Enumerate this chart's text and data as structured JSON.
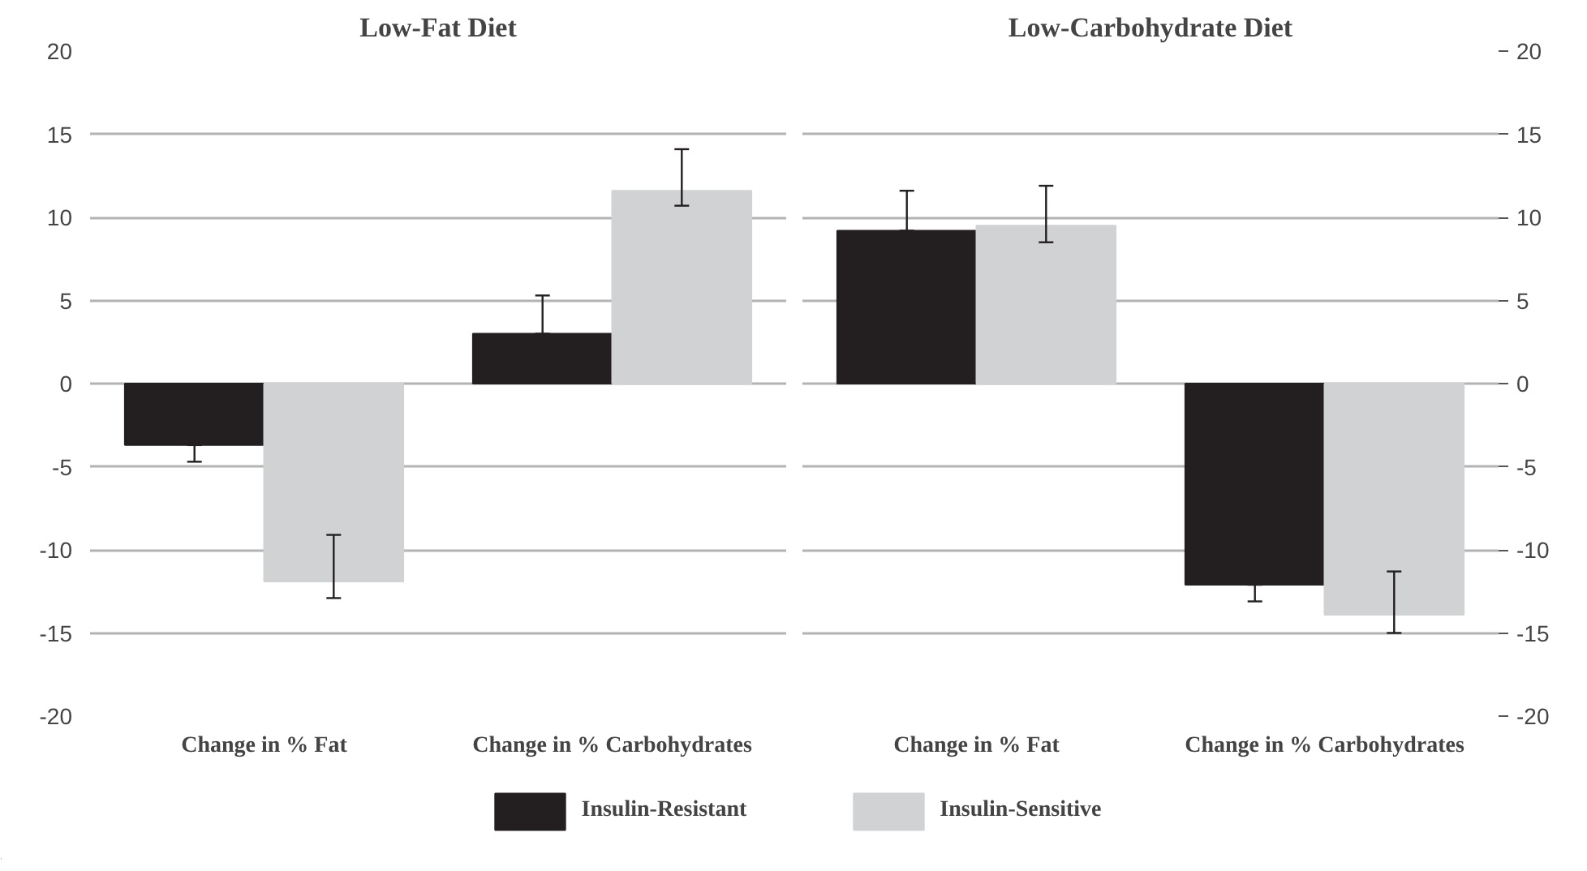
{
  "chart_data": [
    {
      "type": "bar",
      "title": "Low-Fat Diet",
      "categories": [
        "Change in % Fat",
        "Change in % Carbohydrates"
      ],
      "ylim": [
        -20,
        20
      ],
      "yticks": [
        -20,
        -15,
        -10,
        -5,
        0,
        5,
        10,
        15,
        20
      ],
      "grid": "y",
      "legend": "bottom",
      "series": [
        {
          "name": "Insulin-Resistant",
          "color": "#231f20",
          "values": [
            -3.7,
            3.0
          ],
          "errors": [
            [
              -4.7,
              -3.7
            ],
            [
              3.0,
              5.3
            ]
          ]
        },
        {
          "name": "Insulin-Sensitive",
          "color": "#d1d2d4",
          "values": [
            -11.9,
            11.6
          ],
          "errors": [
            [
              -12.9,
              -9.1
            ],
            [
              10.7,
              14.1
            ]
          ]
        }
      ]
    },
    {
      "type": "bar",
      "title": "Low-Carbohydrate Diet",
      "categories": [
        "Change in % Fat",
        "Change in % Carbohydrates"
      ],
      "ylim": [
        -20,
        20
      ],
      "yticks": [
        -20,
        -15,
        -10,
        -5,
        0,
        5,
        10,
        15,
        20
      ],
      "grid": "y",
      "series": [
        {
          "color": "#231f20",
          "values": [
            9.2,
            -12.1
          ],
          "errors": [
            [
              9.2,
              11.6
            ],
            [
              -13.1,
              -12.1
            ]
          ]
        },
        {
          "color": "#d1d2d4",
          "values": [
            9.5,
            -13.9
          ],
          "errors": [
            [
              8.5,
              11.9
            ],
            [
              -15.0,
              -11.3
            ]
          ]
        }
      ]
    }
  ]
}
